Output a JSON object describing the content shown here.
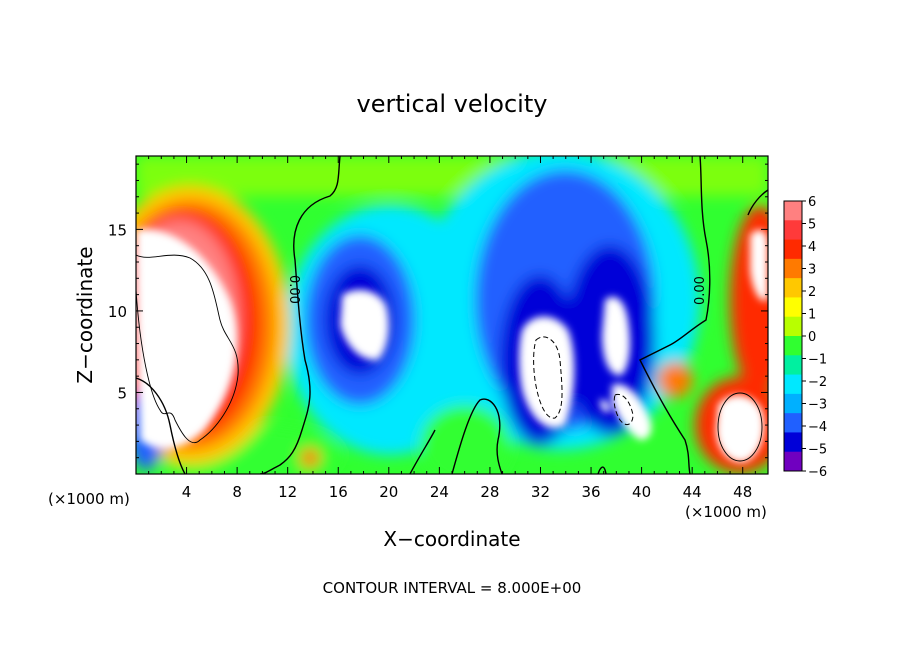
{
  "chart_data": {
    "type": "heatmap",
    "title": "vertical velocity",
    "xlabel": "X−coordinate",
    "ylabel": "Z−coordinate",
    "x_unit_left": "(×1000 m)",
    "x_unit_right": "(×1000 m)",
    "xlim": [
      0,
      50
    ],
    "ylim": [
      0,
      19.5
    ],
    "x_ticks": [
      4,
      8,
      12,
      16,
      20,
      24,
      28,
      32,
      36,
      40,
      44,
      48
    ],
    "y_ticks": [
      5,
      10,
      15
    ],
    "colorbar": {
      "ticks": [
        "6",
        "5",
        "4",
        "3",
        "2",
        "1",
        "0",
        "−1",
        "−2",
        "−3",
        "−4",
        "−5",
        "−6"
      ],
      "colors": [
        "#ff8080",
        "#ff3a3a",
        "#ff2a00",
        "#ff7a00",
        "#ffc800",
        "#ffff00",
        "#b8ff00",
        "#30ff30",
        "#00f0a0",
        "#00e8ff",
        "#00b0ff",
        "#2060ff",
        "#0000d8",
        "#7000c0"
      ]
    },
    "contour_label": "0.00",
    "footnote": "CONTOUR INTERVAL =  8.000E+00"
  }
}
